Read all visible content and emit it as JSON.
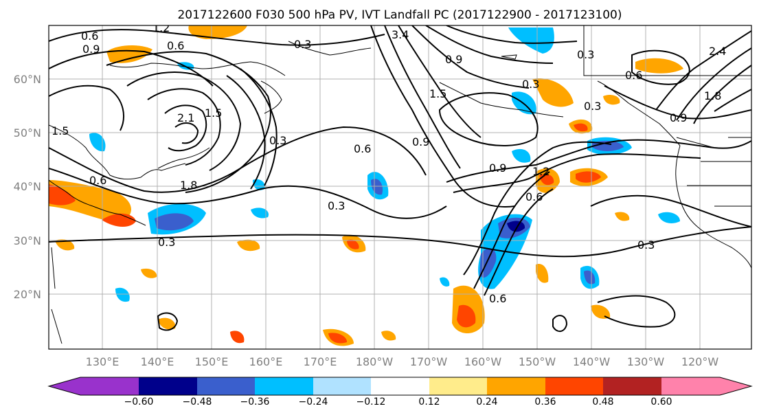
{
  "title": "2017122600 F030 500 hPa PV, IVT Landfall PC (2017122900 - 2017123100)",
  "lat_labels": [
    "60°N",
    "50°N",
    "40°N",
    "30°N",
    "20°N"
  ],
  "lon_labels": [
    "130°E",
    "140°E",
    "150°E",
    "160°E",
    "170°E",
    "180°W",
    "170°W",
    "160°W",
    "150°W",
    "140°W",
    "130°W",
    "120°W"
  ],
  "colorbar": {
    "colors": [
      "#9932cc",
      "#00008b",
      "#3a5fcd",
      "#00bfff",
      "#b0e2ff",
      "#ffffff",
      "#ffec8b",
      "#ffa500",
      "#ff4500",
      "#b22222",
      "#ff82ab"
    ],
    "tick_labels": [
      "−0.60",
      "−0.48",
      "−0.36",
      "−0.24",
      "−0.12",
      "0.12",
      "0.24",
      "0.36",
      "0.48",
      "0.60"
    ]
  },
  "contour_labels": [
    "0.6",
    "0.9",
    "1.2",
    "0.6",
    "2.1",
    "1.5",
    "1.8",
    "0.3",
    "0.3",
    "0.6",
    "0.3",
    "0.3",
    "3.4",
    "1.5",
    "0.9",
    "0.9",
    "1.2",
    "0.6",
    "0.3",
    "0.6",
    "0.9",
    "2.4",
    "1.8",
    "0.9",
    "0.3",
    "0.6",
    "0.3",
    "0.6",
    "1.5",
    "0.3"
  ],
  "shading": {
    "positive_color": "#ffa500",
    "strong_positive_color": "#ff4500",
    "negative_color": "#00bfff",
    "strong_negative_color": "#3a5fcd"
  }
}
